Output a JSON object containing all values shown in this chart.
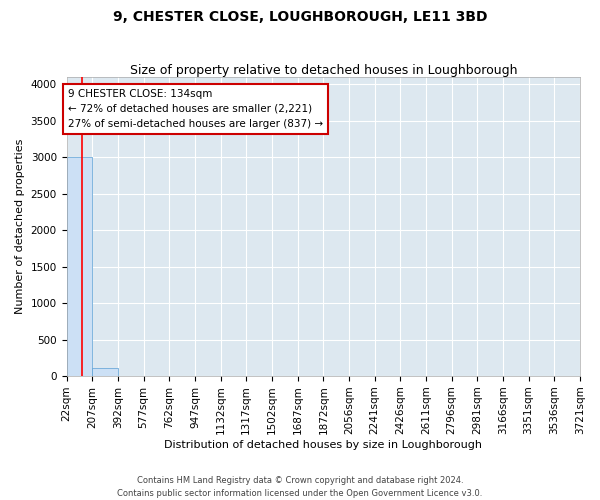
{
  "title": "9, CHESTER CLOSE, LOUGHBOROUGH, LE11 3BD",
  "subtitle": "Size of property relative to detached houses in Loughborough",
  "xlabel": "Distribution of detached houses by size in Loughborough",
  "ylabel": "Number of detached properties",
  "footer_line1": "Contains HM Land Registry data © Crown copyright and database right 2024.",
  "footer_line2": "Contains public sector information licensed under the Open Government Licence v3.0.",
  "annotation_line1": "9 CHESTER CLOSE: 134sqm",
  "annotation_line2": "← 72% of detached houses are smaller (2,221)",
  "annotation_line3": "27% of semi-detached houses are larger (837) →",
  "bin_edges": [
    22,
    207,
    392,
    577,
    762,
    947,
    1132,
    1317,
    1502,
    1687,
    1872,
    2056,
    2241,
    2426,
    2611,
    2796,
    2981,
    3166,
    3351,
    3536,
    3721
  ],
  "bin_labels": [
    "22sqm",
    "207sqm",
    "392sqm",
    "577sqm",
    "762sqm",
    "947sqm",
    "1132sqm",
    "1317sqm",
    "1502sqm",
    "1687sqm",
    "1872sqm",
    "2056sqm",
    "2241sqm",
    "2426sqm",
    "2611sqm",
    "2796sqm",
    "2981sqm",
    "3166sqm",
    "3351sqm",
    "3536sqm",
    "3721sqm"
  ],
  "bar_heights": [
    3000,
    110,
    2,
    1,
    1,
    0,
    0,
    0,
    0,
    0,
    0,
    0,
    0,
    0,
    0,
    0,
    0,
    0,
    0,
    0
  ],
  "bar_color": "#cce0f5",
  "bar_edge_color": "#5a9fd4",
  "red_line_x": 134,
  "ylim": [
    0,
    4100
  ],
  "yticks": [
    0,
    500,
    1000,
    1500,
    2000,
    2500,
    3000,
    3500,
    4000
  ],
  "annotation_box_color": "#ffffff",
  "annotation_box_edge_color": "#cc0000",
  "bg_color": "#dde8f0",
  "title_fontsize": 10,
  "subtitle_fontsize": 9,
  "axis_label_fontsize": 8,
  "tick_fontsize": 7.5,
  "footer_fontsize": 6,
  "annotation_fontsize": 7.5
}
